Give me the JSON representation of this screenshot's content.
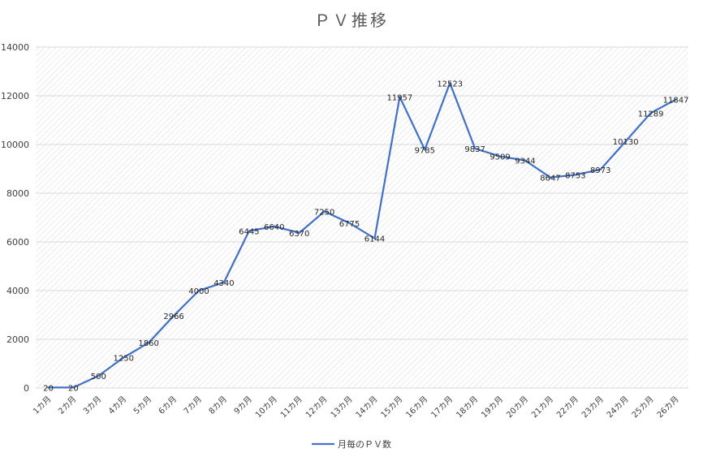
{
  "chart_data": {
    "type": "line",
    "title": "ＰＶ推移",
    "xlabel": "",
    "ylabel": "",
    "ylim": [
      0,
      14000
    ],
    "yticks": [
      0,
      2000,
      4000,
      6000,
      8000,
      10000,
      12000,
      14000
    ],
    "grid": true,
    "legend_position": "bottom",
    "categories": [
      "1カ月",
      "2カ月",
      "3カ月",
      "4カ月",
      "5カ月",
      "6カ月",
      "7カ月",
      "8カ月",
      "9カ月",
      "10カ月",
      "11カ月",
      "12カ月",
      "13カ月",
      "14カ月",
      "15カ月",
      "16カ月",
      "17カ月",
      "18カ月",
      "19カ月",
      "20カ月",
      "21カ月",
      "22カ月",
      "23カ月",
      "24カ月",
      "25カ月",
      "26カ月"
    ],
    "series": [
      {
        "name": "月毎のＰＶ数",
        "color": "#4472c4",
        "values": [
          20,
          20,
          500,
          1250,
          1860,
          2966,
          4000,
          4340,
          6445,
          6640,
          6370,
          7250,
          6775,
          6144,
          11957,
          9785,
          12523,
          9837,
          9509,
          9344,
          8647,
          8753,
          8973,
          10130,
          11289,
          11847
        ]
      }
    ]
  }
}
